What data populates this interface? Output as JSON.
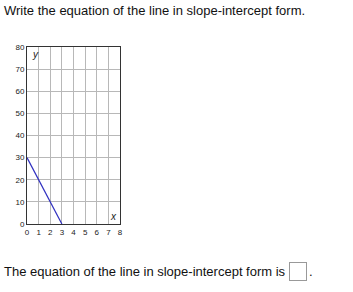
{
  "question": "Write the equation of the line in slope-intercept form.",
  "answer_prompt": "The equation of the line in slope-intercept form is",
  "answer_end": ".",
  "chart_data": {
    "type": "line",
    "xlabel": "x",
    "ylabel": "y",
    "x": [
      0,
      3
    ],
    "values": [
      30,
      0
    ],
    "color": "#3030c0",
    "xlim": [
      0,
      8
    ],
    "xticks": [
      0,
      1,
      2,
      3,
      4,
      5,
      6,
      7,
      8
    ],
    "ylim": [
      0,
      80
    ],
    "yticks": [
      0,
      10,
      20,
      30,
      40,
      50,
      60,
      70,
      80
    ],
    "grid": true
  }
}
